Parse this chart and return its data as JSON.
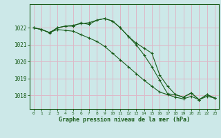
{
  "xlabel": "Graphe pression niveau de la mer (hPa)",
  "background_color": "#cce8e8",
  "grid_color": "#ddb8c8",
  "line_color": "#1a5c1a",
  "x_ticks": [
    0,
    1,
    2,
    3,
    4,
    5,
    6,
    7,
    8,
    9,
    10,
    11,
    12,
    13,
    14,
    15,
    16,
    17,
    18,
    19,
    20,
    21,
    22,
    23
  ],
  "ylim": [
    1017.2,
    1023.4
  ],
  "yticks": [
    1018,
    1019,
    1020,
    1021,
    1022
  ],
  "series1": [
    1022.0,
    1021.9,
    1021.7,
    1022.0,
    1022.1,
    1022.1,
    1022.3,
    1022.2,
    1022.45,
    1022.55,
    1022.4,
    1022.0,
    1021.5,
    1021.1,
    1020.8,
    1020.5,
    1019.2,
    1018.55,
    1018.05,
    1017.9,
    1018.15,
    1017.75,
    1018.05,
    1017.85
  ],
  "series2": [
    1022.0,
    1021.9,
    1021.72,
    1022.0,
    1022.1,
    1022.15,
    1022.25,
    1022.3,
    1022.45,
    1022.55,
    1022.4,
    1022.0,
    1021.5,
    1021.0,
    1020.4,
    1019.7,
    1018.9,
    1018.1,
    1018.05,
    1017.9,
    1018.15,
    1017.75,
    1018.05,
    1017.85
  ],
  "series3": [
    1022.0,
    1021.9,
    1021.72,
    1021.9,
    1021.85,
    1021.8,
    1021.6,
    1021.4,
    1021.2,
    1020.9,
    1020.5,
    1020.1,
    1019.7,
    1019.3,
    1018.9,
    1018.55,
    1018.2,
    1018.05,
    1017.9,
    1017.8,
    1017.95,
    1017.75,
    1017.95,
    1017.85
  ]
}
